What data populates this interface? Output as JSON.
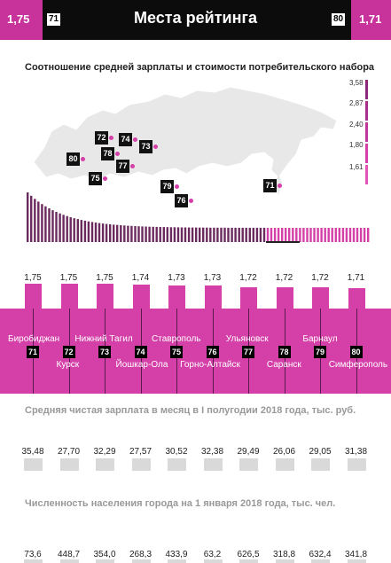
{
  "header": {
    "title": "Места рейтинга",
    "left_value": "1,75",
    "left_rank": "71",
    "right_rank": "80",
    "right_value": "1,71"
  },
  "colors": {
    "accent": "#d43fa8",
    "header_bg": "#0c0c0c",
    "gray_bar": "#d9d9d9"
  },
  "chart_data": [
    {
      "type": "bar",
      "title": "Соотношение средней зарплаты и стоимости потребительского набора",
      "scale_labels": [
        "3,58",
        "2,87",
        "2,40",
        "1,80",
        "1,61"
      ],
      "cities": [
        {
          "name": "Биробиджан",
          "rank": "71",
          "value": "1,75"
        },
        {
          "name": "Курск",
          "rank": "72",
          "value": "1,75"
        },
        {
          "name": "Нижний Тагил",
          "rank": "73",
          "value": "1,75"
        },
        {
          "name": "Йошкар-Ола",
          "rank": "74",
          "value": "1,74"
        },
        {
          "name": "Ставрополь",
          "rank": "75",
          "value": "1,73"
        },
        {
          "name": "Горно-Алтайск",
          "rank": "76",
          "value": "1,73"
        },
        {
          "name": "Ульяновск",
          "rank": "77",
          "value": "1,72"
        },
        {
          "name": "Саранск",
          "rank": "78",
          "value": "1,72"
        },
        {
          "name": "Барнаул",
          "rank": "79",
          "value": "1,72"
        },
        {
          "name": "Симферополь",
          "rank": "80",
          "value": "1,71"
        }
      ],
      "map_badges": [
        "72",
        "74",
        "73",
        "80",
        "78",
        "77",
        "75",
        "79",
        "76",
        "71"
      ]
    },
    {
      "type": "bar",
      "title": "Средняя чистая зарплата в месяц в I полугодии 2018 года, тыс. руб.",
      "values": [
        "35,48",
        "27,70",
        "32,29",
        "27,57",
        "30,52",
        "32,38",
        "29,49",
        "26,06",
        "29,05",
        "31,38"
      ]
    },
    {
      "type": "bar",
      "title": "Численность населения города на 1 января 2018 года, тыс. чел.",
      "values": [
        "73,6",
        "448,7",
        "354,0",
        "268,3",
        "433,9",
        "63,2",
        "626,5",
        "318,8",
        "632,4",
        "341,8"
      ]
    }
  ]
}
